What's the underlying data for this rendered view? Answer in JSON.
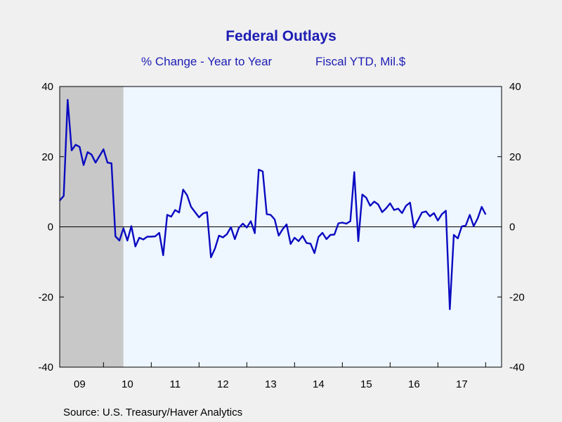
{
  "chart_data": {
    "type": "line",
    "title": "Federal Outlays",
    "subtitle_left": "% Change - Year to Year",
    "subtitle_right": "Fiscal YTD, Mil.$",
    "source": "Source:  U.S. Treasury/Haver Analytics",
    "xlabel": "",
    "ylabel": "",
    "ylim": [
      -40,
      40
    ],
    "y_ticks": [
      40,
      20,
      0,
      -20,
      -40
    ],
    "y_tick_labels": [
      "40",
      "20",
      "0",
      "-20",
      "-40"
    ],
    "x_tick_labels": [
      "09",
      "10",
      "11",
      "12",
      "13",
      "14",
      "15",
      "16",
      "17"
    ],
    "x_range": [
      "2008-02",
      "2017-05"
    ],
    "recession": {
      "start": "2008-02",
      "end": "2009-06",
      "color": "#c8c8c8"
    },
    "plot_background": "#eef6ff",
    "line_color": "#0a0ac0",
    "series": [
      {
        "values": [
          [
            "2008-02",
            7.5
          ],
          [
            "2008-03",
            8.8
          ],
          [
            "2008-04",
            36.2
          ],
          [
            "2008-05",
            21.8
          ],
          [
            "2008-06",
            23.4
          ],
          [
            "2008-07",
            22.8
          ],
          [
            "2008-08",
            17.6
          ],
          [
            "2008-09",
            21.3
          ],
          [
            "2008-10",
            20.6
          ],
          [
            "2008-11",
            18.3
          ],
          [
            "2008-12",
            20.2
          ],
          [
            "2009-01",
            22.1
          ],
          [
            "2009-02",
            18.3
          ],
          [
            "2009-03",
            18.1
          ],
          [
            "2009-04",
            -2.7
          ],
          [
            "2009-05",
            -3.9
          ],
          [
            "2009-06",
            -0.4
          ],
          [
            "2009-07",
            -3.9
          ],
          [
            "2009-08",
            0.2
          ],
          [
            "2009-09",
            -5.6
          ],
          [
            "2009-10",
            -3.1
          ],
          [
            "2009-11",
            -3.6
          ],
          [
            "2009-12",
            -2.8
          ],
          [
            "2010-01",
            -2.8
          ],
          [
            "2010-02",
            -2.7
          ],
          [
            "2010-03",
            -1.7
          ],
          [
            "2010-04",
            -8.1
          ],
          [
            "2010-05",
            3.4
          ],
          [
            "2010-06",
            2.9
          ],
          [
            "2010-07",
            4.8
          ],
          [
            "2010-08",
            4.1
          ],
          [
            "2010-09",
            10.6
          ],
          [
            "2010-10",
            9.0
          ],
          [
            "2010-11",
            5.7
          ],
          [
            "2010-12",
            4.2
          ],
          [
            "2011-01",
            2.7
          ],
          [
            "2011-02",
            3.8
          ],
          [
            "2011-03",
            4.2
          ],
          [
            "2011-04",
            -8.7
          ],
          [
            "2011-05",
            -6.2
          ],
          [
            "2011-06",
            -2.5
          ],
          [
            "2011-07",
            -3.0
          ],
          [
            "2011-08",
            -2.1
          ],
          [
            "2011-09",
            -0.1
          ],
          [
            "2011-10",
            -3.5
          ],
          [
            "2011-11",
            -0.3
          ],
          [
            "2011-12",
            0.9
          ],
          [
            "2012-01",
            -0.2
          ],
          [
            "2012-02",
            1.6
          ],
          [
            "2012-03",
            -1.8
          ],
          [
            "2012-04",
            16.3
          ],
          [
            "2012-05",
            15.8
          ],
          [
            "2012-06",
            3.6
          ],
          [
            "2012-07",
            3.4
          ],
          [
            "2012-08",
            2.1
          ],
          [
            "2012-09",
            -2.5
          ],
          [
            "2012-10",
            -0.7
          ],
          [
            "2012-11",
            0.7
          ],
          [
            "2012-12",
            -4.9
          ],
          [
            "2013-01",
            -3.1
          ],
          [
            "2013-02",
            -4.1
          ],
          [
            "2013-03",
            -2.6
          ],
          [
            "2013-04",
            -4.6
          ],
          [
            "2013-05",
            -4.8
          ],
          [
            "2013-06",
            -7.5
          ],
          [
            "2013-07",
            -2.9
          ],
          [
            "2013-08",
            -1.7
          ],
          [
            "2013-09",
            -3.5
          ],
          [
            "2013-10",
            -2.3
          ],
          [
            "2013-11",
            -2.2
          ],
          [
            "2013-12",
            1.0
          ],
          [
            "2014-01",
            1.2
          ],
          [
            "2014-02",
            0.9
          ],
          [
            "2014-03",
            1.6
          ],
          [
            "2014-04",
            15.6
          ],
          [
            "2014-05",
            -4.1
          ],
          [
            "2014-06",
            9.2
          ],
          [
            "2014-07",
            8.3
          ],
          [
            "2014-08",
            6.0
          ],
          [
            "2014-09",
            7.2
          ],
          [
            "2014-10",
            6.4
          ],
          [
            "2014-11",
            4.2
          ],
          [
            "2014-12",
            5.3
          ],
          [
            "2015-01",
            6.7
          ],
          [
            "2015-02",
            4.8
          ],
          [
            "2015-03",
            5.2
          ],
          [
            "2015-04",
            3.9
          ],
          [
            "2015-05",
            6.0
          ],
          [
            "2015-06",
            6.9
          ],
          [
            "2015-07",
            -0.2
          ],
          [
            "2015-08",
            1.9
          ],
          [
            "2015-09",
            4.1
          ],
          [
            "2015-10",
            4.4
          ],
          [
            "2015-11",
            3.0
          ],
          [
            "2015-12",
            3.9
          ],
          [
            "2016-01",
            1.8
          ],
          [
            "2016-02",
            3.6
          ],
          [
            "2016-03",
            4.6
          ],
          [
            "2016-04",
            -23.5
          ],
          [
            "2016-05",
            -2.3
          ],
          [
            "2016-06",
            -3.3
          ],
          [
            "2016-07",
            0.1
          ],
          [
            "2016-08",
            0.4
          ],
          [
            "2016-09",
            3.4
          ],
          [
            "2016-10",
            0.2
          ],
          [
            "2016-11",
            2.4
          ],
          [
            "2016-12",
            5.7
          ],
          [
            "2017-01",
            3.5
          ]
        ]
      }
    ]
  }
}
